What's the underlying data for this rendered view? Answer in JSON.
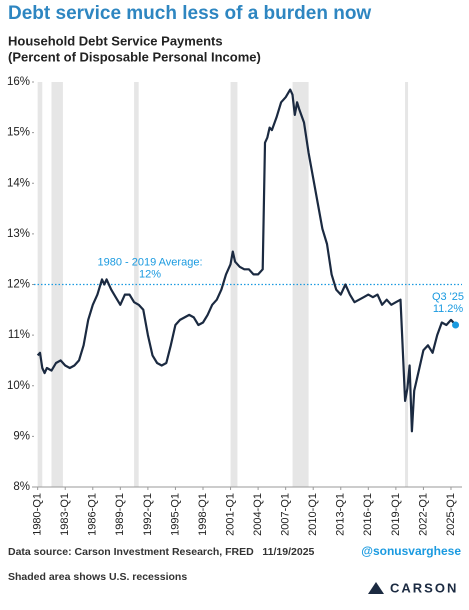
{
  "chart_data": {
    "type": "line",
    "title": "Debt service much less of a burden now",
    "subtitle": [
      "Household Debt Service Payments",
      "(Percent of Disposable Personal Income)"
    ],
    "x": [
      1980,
      1980.25,
      1980.5,
      1980.75,
      1981,
      1981.5,
      1982,
      1982.5,
      1983,
      1983.5,
      1984,
      1984.5,
      1985,
      1985.5,
      1986,
      1986.5,
      1987,
      1987.25,
      1987.5,
      1988,
      1988.5,
      1989,
      1989.5,
      1990,
      1990.5,
      1991,
      1991.5,
      1992,
      1992.5,
      1993,
      1993.5,
      1994,
      1994.5,
      1995,
      1995.5,
      1996,
      1996.5,
      1997,
      1997.5,
      1998,
      1998.5,
      1999,
      1999.5,
      2000,
      2000.5,
      2001,
      2001.25,
      2001.5,
      2002,
      2002.5,
      2003,
      2003.5,
      2004,
      2004.5,
      2004.75,
      2005,
      2005.25,
      2005.5,
      2006,
      2006.5,
      2007,
      2007.5,
      2007.75,
      2008,
      2008.25,
      2008.5,
      2009,
      2009.5,
      2010,
      2010.5,
      2011,
      2011.5,
      2012,
      2012.5,
      2013,
      2013.5,
      2014,
      2014.5,
      2015,
      2015.5,
      2016,
      2016.5,
      2017,
      2017.5,
      2018,
      2018.5,
      2019,
      2019.5,
      2020,
      2020.25,
      2020.5,
      2020.75,
      2021,
      2021.5,
      2022,
      2022.5,
      2023,
      2023.5,
      2024,
      2024.5,
      2025,
      2025.5
    ],
    "series": [
      {
        "color": "#1b2a41",
        "values": [
          10.6,
          10.65,
          10.35,
          10.25,
          10.35,
          10.3,
          10.45,
          10.5,
          10.4,
          10.35,
          10.4,
          10.5,
          10.8,
          11.3,
          11.6,
          11.8,
          12.1,
          12.0,
          12.1,
          11.9,
          11.75,
          11.6,
          11.8,
          11.8,
          11.65,
          11.6,
          11.5,
          11.0,
          10.6,
          10.45,
          10.4,
          10.45,
          10.8,
          11.2,
          11.3,
          11.35,
          11.4,
          11.35,
          11.2,
          11.25,
          11.4,
          11.6,
          11.7,
          11.9,
          12.2,
          12.4,
          12.65,
          12.45,
          12.35,
          12.3,
          12.3,
          12.2,
          12.2,
          12.3,
          14.8,
          14.9,
          15.1,
          15.05,
          15.3,
          15.6,
          15.7,
          15.85,
          15.75,
          15.35,
          15.6,
          15.45,
          15.2,
          14.6,
          14.1,
          13.6,
          13.1,
          12.8,
          12.2,
          11.9,
          11.8,
          12.0,
          11.8,
          11.65,
          11.7,
          11.75,
          11.8,
          11.75,
          11.8,
          11.6,
          11.7,
          11.6,
          11.65,
          11.7,
          9.7,
          9.95,
          10.4,
          9.1,
          9.9,
          10.3,
          10.7,
          10.8,
          10.65,
          11.0,
          11.25,
          11.2,
          11.3,
          11.2
        ]
      }
    ],
    "xlim": [
      1979.6,
      2026.2
    ],
    "xticks": [
      {
        "value": 1980,
        "label": "1980-Q1"
      },
      {
        "value": 1983,
        "label": "1983-Q1"
      },
      {
        "value": 1986,
        "label": "1986-Q1"
      },
      {
        "value": 1989,
        "label": "1989-Q1"
      },
      {
        "value": 1992,
        "label": "1992-Q1"
      },
      {
        "value": 1995,
        "label": "1995-Q1"
      },
      {
        "value": 1998,
        "label": "1998-Q1"
      },
      {
        "value": 2001,
        "label": "2001-Q1"
      },
      {
        "value": 2004,
        "label": "2004-Q1"
      },
      {
        "value": 2007,
        "label": "2007-Q1"
      },
      {
        "value": 2010,
        "label": "2010-Q1"
      },
      {
        "value": 2013,
        "label": "2013-Q1"
      },
      {
        "value": 2016,
        "label": "2016-Q1"
      },
      {
        "value": 2019,
        "label": "2019-Q1"
      },
      {
        "value": 2022,
        "label": "2022-Q1"
      },
      {
        "value": 2025,
        "label": "2025-Q1"
      }
    ],
    "ylim": [
      8,
      16
    ],
    "yticks": [
      {
        "value": 8,
        "label": "8%"
      },
      {
        "value": 9,
        "label": "9%"
      },
      {
        "value": 10,
        "label": "10%"
      },
      {
        "value": 11,
        "label": "11%"
      },
      {
        "value": 12,
        "label": "12%"
      },
      {
        "value": 13,
        "label": "13%"
      },
      {
        "value": 14,
        "label": "14%"
      },
      {
        "value": 15,
        "label": "15%"
      },
      {
        "value": 16,
        "label": "16%"
      }
    ],
    "recessions": [
      [
        1980,
        1980.5
      ],
      [
        1981.5,
        1982.75
      ],
      [
        1990.5,
        1991
      ],
      [
        2001,
        2001.75
      ],
      [
        2007.75,
        2009.5
      ],
      [
        2020,
        2020.25
      ]
    ],
    "average": {
      "value": 12,
      "label": [
        "1980 - 2019 Average:",
        "12%"
      ],
      "color": "#1a9ae0"
    },
    "last_label": [
      "Q3 '25",
      "11.2%"
    ],
    "source": "Data source: Carson Investment Research, FRED   11/19/2025",
    "handle": "@sonusvarghese",
    "note": "Shaded area shows U.S. recessions",
    "logo": "CARSON"
  }
}
